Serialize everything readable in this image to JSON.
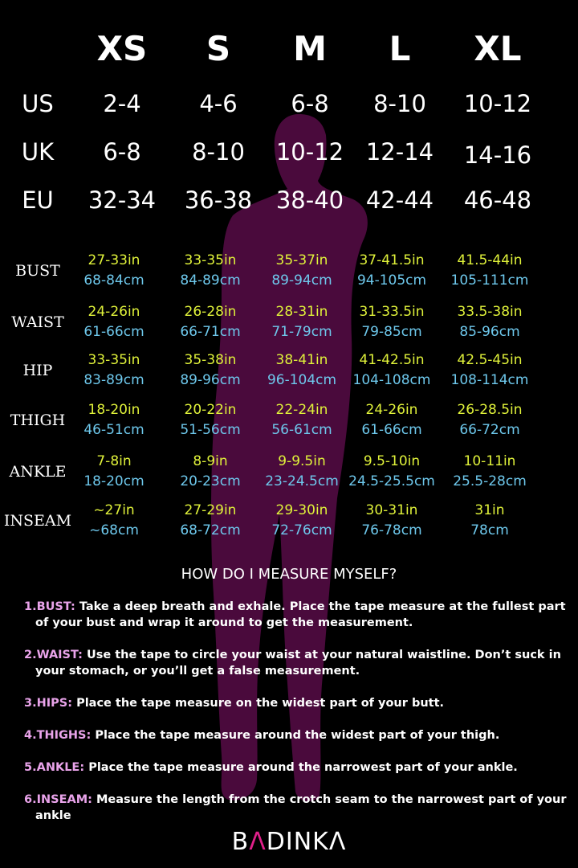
{
  "colors": {
    "background": "#000000",
    "silhouette": "#4a0a3c",
    "inch": "#e0f23a",
    "cm": "#6ec8ec",
    "instruction_label": "#e9a3ea",
    "logo_accent": "#e0208a"
  },
  "sizes": [
    "XS",
    "S",
    "M",
    "L",
    "XL"
  ],
  "conversions": [
    {
      "label": "US",
      "values": [
        "2-4",
        "4-6",
        "6-8",
        "8-10",
        "10-12"
      ]
    },
    {
      "label": "UK",
      "values": [
        "6-8",
        "8-10",
        "10-12",
        "12-14",
        "14-16"
      ]
    },
    {
      "label": "EU",
      "values": [
        "32-34",
        "36-38",
        "38-40",
        "42-44",
        "46-48"
      ]
    }
  ],
  "measurements": [
    {
      "label": "BUST",
      "inches": [
        "27-33in",
        "33-35in",
        "35-37in",
        "37-41.5in",
        "41.5-44in"
      ],
      "cm": [
        "68-84cm",
        "84-89cm",
        "89-94cm",
        "94-105cm",
        "105-111cm"
      ]
    },
    {
      "label": "WAIST",
      "inches": [
        "24-26in",
        "26-28in",
        "28-31in",
        "31-33.5in",
        "33.5-38in"
      ],
      "cm": [
        "61-66cm",
        "66-71cm",
        "71-79cm",
        "79-85cm",
        "85-96cm"
      ]
    },
    {
      "label": "HIP",
      "inches": [
        "33-35in",
        "35-38in",
        "38-41in",
        "41-42.5in",
        "42.5-45in"
      ],
      "cm": [
        "83-89cm",
        "89-96cm",
        "96-104cm",
        "104-108cm",
        "108-114cm"
      ]
    },
    {
      "label": "THIGH",
      "inches": [
        "18-20in",
        "20-22in",
        "22-24in",
        "24-26in",
        "26-28.5in"
      ],
      "cm": [
        "46-51cm",
        "51-56cm",
        "56-61cm",
        "61-66cm",
        "66-72cm"
      ]
    },
    {
      "label": "ANKLE",
      "inches": [
        "7-8in",
        "8-9in",
        "9-9.5in",
        "9.5-10in",
        "10-11in"
      ],
      "cm": [
        "18-20cm",
        "20-23cm",
        "23-24.5cm",
        "24.5-25.5cm",
        "25.5-28cm"
      ]
    },
    {
      "label": "INSEAM",
      "inches": [
        "~27in",
        "27-29in",
        "29-30in",
        "30-31in",
        "31in"
      ],
      "cm": [
        "~68cm",
        "68-72cm",
        "72-76cm",
        "76-78cm",
        "78cm"
      ]
    }
  ],
  "guide": {
    "heading": "HOW DO I MEASURE MYSELF?",
    "items": [
      {
        "key": "1.BUST:",
        "text": "Take a deep breath and exhale. Place the tape measure at the fullest part of your bust and wrap it around to get the measurement."
      },
      {
        "key": "2.WAIST:",
        "text": "Use the tape to circle your waist at your natural waistline. Don’t suck in your stomach, or you’ll get a false measurement."
      },
      {
        "key": "3.HIPS:",
        "text": "Place the tape measure on the widest part of your butt."
      },
      {
        "key": "4.THIGHS:",
        "text": "Place the tape measure around the widest part of your thigh."
      },
      {
        "key": "5.ANKLE:",
        "text": "Place the tape measure around the narrowest part of your ankle."
      },
      {
        "key": "6.INSEAM:",
        "text": "Measure the length from the crotch seam to the narrowest part of your ankle"
      }
    ]
  },
  "logo": {
    "text": "BADINKA"
  }
}
